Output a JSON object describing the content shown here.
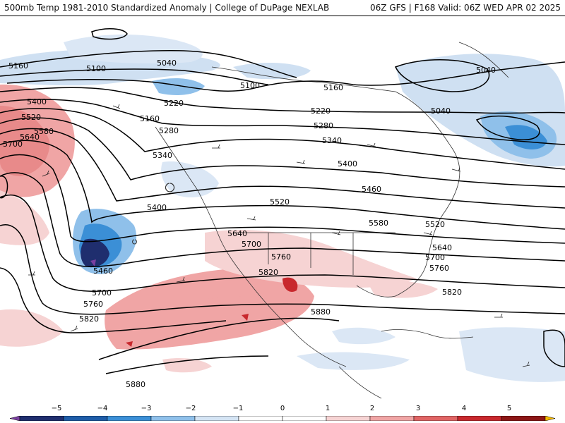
{
  "header": {
    "title_left": "500mb Temp 1981-2010 Standardized Anomaly | College of DuPage NEXLAB",
    "title_right": "06Z GFS | F168 Valid: 06Z WED APR 02 2025"
  },
  "contour_labels": [
    "5160",
    "5100",
    "5040",
    "5100",
    "5160",
    "5040",
    "5040",
    "5400",
    "5220",
    "5160",
    "5220",
    "5520",
    "5580",
    "5640",
    "5700",
    "5280",
    "5280",
    "5340",
    "5340",
    "5400",
    "5460",
    "5400",
    "5520",
    "5580",
    "5520",
    "5640",
    "5700",
    "5760",
    "5640",
    "5460",
    "5820",
    "5700",
    "5760",
    "5700",
    "5760",
    "5880",
    "5820",
    "5820",
    "5880"
  ],
  "colorbar": {
    "ticks": [
      "−5",
      "−4",
      "−3",
      "−2",
      "−1",
      "0",
      "1",
      "2",
      "3",
      "4",
      "5"
    ],
    "colors": [
      "#7a3fa0",
      "#1f2e6e",
      "#1e5ca8",
      "#3b8fd6",
      "#8fc0ea",
      "#d4e4f4",
      "#ffffff",
      "#ffffff",
      "#f6d3d3",
      "#f0a5a5",
      "#e06464",
      "#c8282d",
      "#8c1616",
      "#f5b800"
    ]
  },
  "colors": {
    "cold_light": "#cfe0f2",
    "cold_mid": "#8fc0ea",
    "cold_strong": "#3b8fd6",
    "cold_deep": "#1f2e6e",
    "warm_light": "#f6d3d3",
    "warm_mid": "#f0a5a5",
    "warm_strong": "#e06464",
    "warm_deep": "#c8282d"
  }
}
